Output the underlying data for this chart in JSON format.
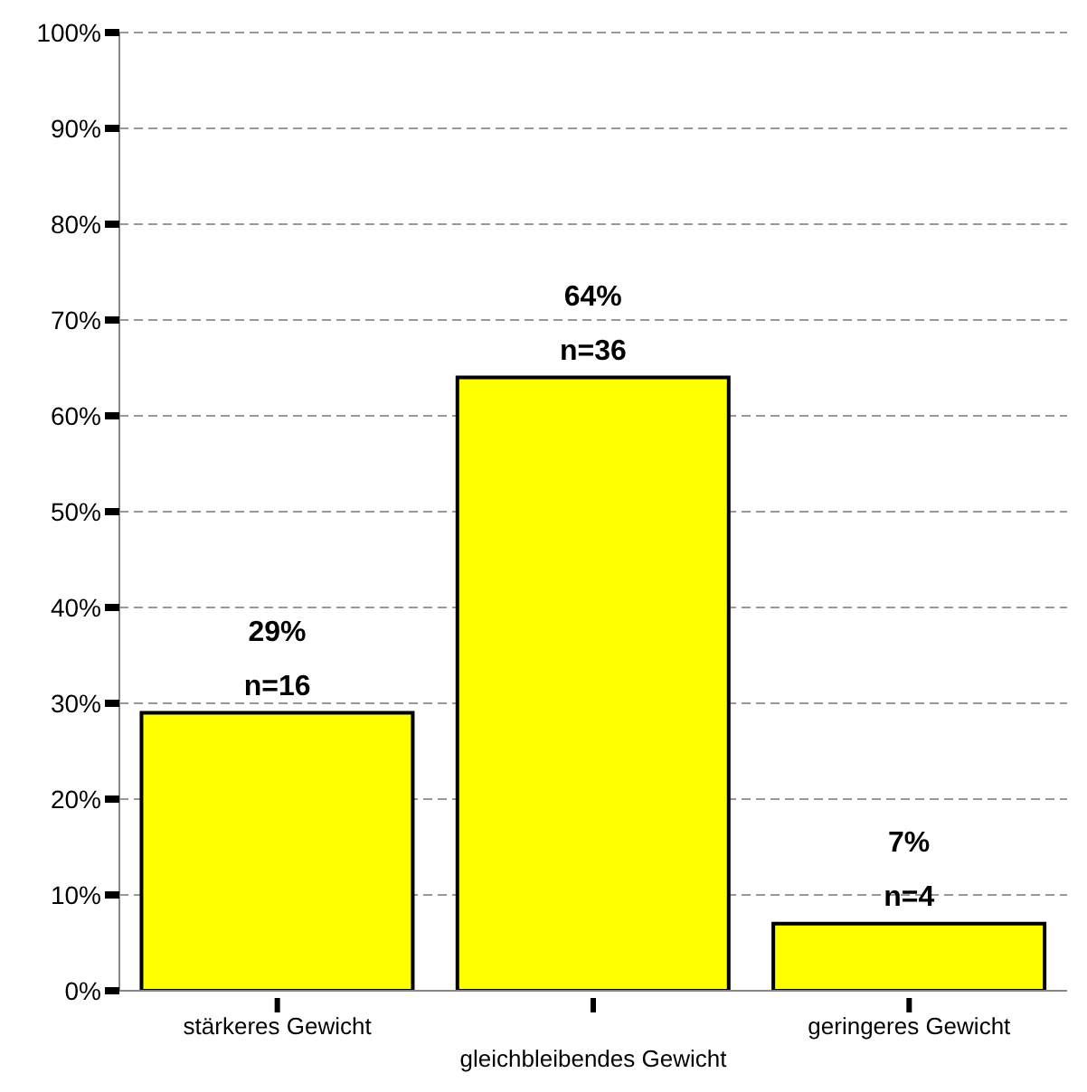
{
  "chart_data": {
    "type": "bar",
    "categories": [
      "stärkeres Gewicht",
      "gleichbleibendes Gewicht",
      "geringeres Gewicht"
    ],
    "values": [
      29,
      64,
      7
    ],
    "color": "#ffff00",
    "value_labels": [
      "29%",
      "64%",
      "7%"
    ],
    "annotations": [
      {
        "text": "n=16",
        "x": "stärkeres Gewicht",
        "y": 29
      },
      {
        "text": "n=36",
        "x": "gleichbleibendes Gewicht",
        "y": 64
      },
      {
        "text": "n=4",
        "x": "geringeres Gewicht",
        "y": 7
      }
    ],
    "ylim": [
      0,
      100
    ],
    "yticks": [
      {
        "value": 0,
        "label": "0%"
      },
      {
        "value": 10,
        "label": "10%"
      },
      {
        "value": 20,
        "label": "20%"
      },
      {
        "value": 30,
        "label": "30%"
      },
      {
        "value": 40,
        "label": "40%"
      },
      {
        "value": 50,
        "label": "50%"
      },
      {
        "value": 60,
        "label": "60%"
      },
      {
        "value": 70,
        "label": "70%"
      },
      {
        "value": 80,
        "label": "80%"
      },
      {
        "value": 90,
        "label": "90%"
      },
      {
        "value": 100,
        "label": "100%"
      }
    ],
    "grid": "y",
    "legend": false
  }
}
